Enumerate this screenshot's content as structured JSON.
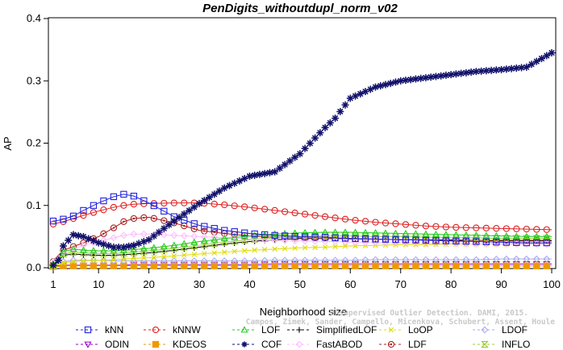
{
  "chart_data": {
    "type": "line",
    "title": "PenDigits_withoutdupl_norm_v02",
    "xlabel": "Neighborhood size",
    "ylabel": "AP",
    "xlim": [
      1,
      100
    ],
    "ylim": [
      0,
      0.4
    ],
    "xticks": [
      1,
      10,
      20,
      30,
      40,
      50,
      60,
      70,
      80,
      90,
      100
    ],
    "yticks": [
      0.0,
      0.1,
      0.2,
      0.3,
      0.4
    ],
    "xtick_labels": [
      "1",
      "10",
      "20",
      "30",
      "40",
      "50",
      "60",
      "70",
      "80",
      "90",
      "100"
    ],
    "ytick_labels": [
      "0.0",
      "0.1",
      "0.2",
      "0.3",
      "0.4"
    ],
    "grid": false,
    "legend_position": "bottom",
    "x_sample": [
      1,
      2,
      3,
      5,
      7,
      10,
      13,
      15,
      17,
      20,
      25,
      30,
      35,
      40,
      45,
      50,
      55,
      57,
      60,
      65,
      70,
      75,
      80,
      85,
      90,
      95,
      100
    ],
    "series": [
      {
        "name": "kNN",
        "marker": "square",
        "color": "#2222dd",
        "values": [
          0.075,
          0.076,
          0.078,
          0.083,
          0.092,
          0.104,
          0.114,
          0.118,
          0.115,
          0.104,
          0.082,
          0.068,
          0.06,
          0.055,
          0.052,
          0.05,
          0.049,
          0.048,
          0.047,
          0.046,
          0.045,
          0.044,
          0.043,
          0.042,
          0.041,
          0.04,
          0.04
        ]
      },
      {
        "name": "kNNW",
        "marker": "circle",
        "color": "#dd2222",
        "values": [
          0.07,
          0.072,
          0.074,
          0.079,
          0.084,
          0.091,
          0.097,
          0.1,
          0.102,
          0.103,
          0.104,
          0.104,
          0.101,
          0.097,
          0.092,
          0.087,
          0.082,
          0.08,
          0.077,
          0.073,
          0.07,
          0.067,
          0.065,
          0.064,
          0.063,
          0.062,
          0.061
        ]
      },
      {
        "name": "LOF",
        "marker": "triangle-up",
        "color": "#22cc22",
        "values": [
          0.005,
          0.015,
          0.026,
          0.03,
          0.028,
          0.027,
          0.027,
          0.028,
          0.029,
          0.031,
          0.036,
          0.042,
          0.047,
          0.051,
          0.054,
          0.056,
          0.057,
          0.057,
          0.057,
          0.056,
          0.055,
          0.054,
          0.053,
          0.052,
          0.051,
          0.05,
          0.05
        ]
      },
      {
        "name": "SimplifiedLOF",
        "marker": "plus",
        "color": "#000000",
        "values": [
          0.003,
          0.01,
          0.02,
          0.022,
          0.021,
          0.02,
          0.02,
          0.021,
          0.022,
          0.024,
          0.028,
          0.033,
          0.038,
          0.042,
          0.045,
          0.047,
          0.047,
          0.047,
          0.047,
          0.046,
          0.045,
          0.045,
          0.044,
          0.044,
          0.043,
          0.043,
          0.043
        ]
      },
      {
        "name": "LoOP",
        "marker": "x",
        "color": "#dddd00",
        "values": [
          0.002,
          0.005,
          0.008,
          0.01,
          0.011,
          0.012,
          0.013,
          0.014,
          0.015,
          0.016,
          0.019,
          0.022,
          0.025,
          0.028,
          0.03,
          0.032,
          0.033,
          0.034,
          0.035,
          0.036,
          0.037,
          0.037,
          0.038,
          0.038,
          0.038,
          0.039,
          0.039
        ]
      },
      {
        "name": "LDOF",
        "marker": "diamond",
        "color": "#aaaaee",
        "values": [
          0.004,
          0.007,
          0.01,
          0.012,
          0.012,
          0.012,
          0.011,
          0.011,
          0.011,
          0.011,
          0.011,
          0.011,
          0.011,
          0.011,
          0.012,
          0.012,
          0.012,
          0.012,
          0.012,
          0.013,
          0.013,
          0.013,
          0.013,
          0.013,
          0.014,
          0.014,
          0.014
        ]
      },
      {
        "name": "ODIN",
        "marker": "triangle-down",
        "color": "#9900cc",
        "values": [
          0.002,
          0.003,
          0.004,
          0.004,
          0.004,
          0.004,
          0.004,
          0.004,
          0.005,
          0.005,
          0.005,
          0.005,
          0.005,
          0.005,
          0.006,
          0.006,
          0.006,
          0.006,
          0.006,
          0.006,
          0.006,
          0.006,
          0.006,
          0.006,
          0.006,
          0.006,
          0.006
        ]
      },
      {
        "name": "KDEOS",
        "marker": "square-filled",
        "color": "#ee9900",
        "values": [
          0.002,
          0.002,
          0.003,
          0.003,
          0.003,
          0.003,
          0.003,
          0.003,
          0.003,
          0.003,
          0.003,
          0.003,
          0.003,
          0.003,
          0.003,
          0.003,
          0.003,
          0.003,
          0.003,
          0.003,
          0.003,
          0.003,
          0.003,
          0.003,
          0.003,
          0.003,
          0.003
        ]
      },
      {
        "name": "COF",
        "marker": "asterisk",
        "color": "#11116b",
        "values": [
          0.004,
          0.012,
          0.035,
          0.053,
          0.05,
          0.04,
          0.033,
          0.033,
          0.036,
          0.045,
          0.075,
          0.103,
          0.128,
          0.147,
          0.154,
          0.183,
          0.225,
          0.24,
          0.272,
          0.29,
          0.3,
          0.305,
          0.31,
          0.315,
          0.318,
          0.322,
          0.345
        ]
      },
      {
        "name": "FastABOD",
        "marker": "diamond",
        "color": "#ffbbff",
        "values": [
          0.01,
          0.018,
          0.024,
          0.03,
          0.036,
          0.042,
          0.048,
          0.052,
          0.054,
          0.054,
          0.052,
          0.05,
          0.048,
          0.046,
          0.044,
          0.043,
          0.042,
          0.042,
          0.041,
          0.04,
          0.04,
          0.039,
          0.039,
          0.038,
          0.038,
          0.038,
          0.038
        ]
      },
      {
        "name": "LDF",
        "marker": "circle-dot",
        "color": "#aa2222",
        "values": [
          0.01,
          0.02,
          0.028,
          0.034,
          0.04,
          0.05,
          0.064,
          0.074,
          0.079,
          0.081,
          0.072,
          0.06,
          0.055,
          0.051,
          0.049,
          0.048,
          0.047,
          0.047,
          0.046,
          0.046,
          0.045,
          0.045,
          0.045,
          0.044,
          0.044,
          0.044,
          0.044
        ]
      },
      {
        "name": "INFLO",
        "marker": "hourglass",
        "color": "#99cc33",
        "values": [
          0.004,
          0.012,
          0.022,
          0.025,
          0.024,
          0.023,
          0.023,
          0.024,
          0.025,
          0.027,
          0.031,
          0.036,
          0.041,
          0.045,
          0.048,
          0.05,
          0.051,
          0.051,
          0.051,
          0.05,
          0.05,
          0.049,
          0.048,
          0.048,
          0.047,
          0.047,
          0.047
        ]
      }
    ]
  },
  "watermark": {
    "line1": "Unsupervised Outlier Detection. DAMI, 2015.",
    "line2": "Campos, Zimek, Sander, Campello, Micenkova, Schubert, Assent, Houle"
  }
}
